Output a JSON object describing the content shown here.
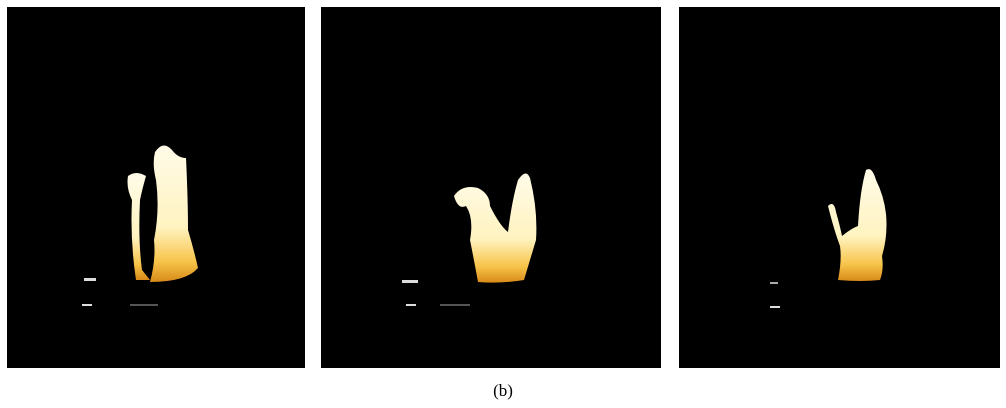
{
  "caption": "(b)"
}
